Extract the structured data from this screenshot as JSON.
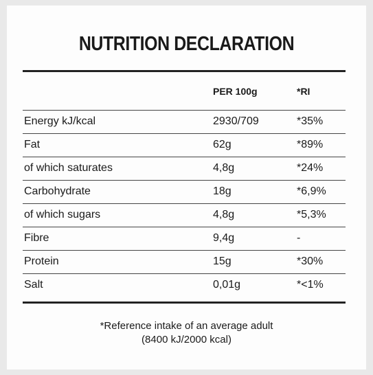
{
  "title": "NUTRITION DECLARATION",
  "table": {
    "headers": [
      "PER 100g",
      "*RI"
    ],
    "rows": [
      [
        "Energy kJ/kcal",
        "2930/709",
        "*35%"
      ],
      [
        "Fat",
        "62g",
        "*89%"
      ],
      [
        "of which saturates",
        "4,8g",
        "*24%"
      ],
      [
        "Carbohydrate",
        "18g",
        "*6,9%"
      ],
      [
        "of which sugars",
        "4,8g",
        "*5,3%"
      ],
      [
        "Fibre",
        "9,4g",
        "-"
      ],
      [
        "Protein",
        "15g",
        "*30%"
      ],
      [
        "Salt",
        "0,01g",
        "*<1%"
      ]
    ]
  },
  "footnote": [
    "*Reference intake of an average adult",
    "(8400 kJ/2000 kcal)"
  ]
}
